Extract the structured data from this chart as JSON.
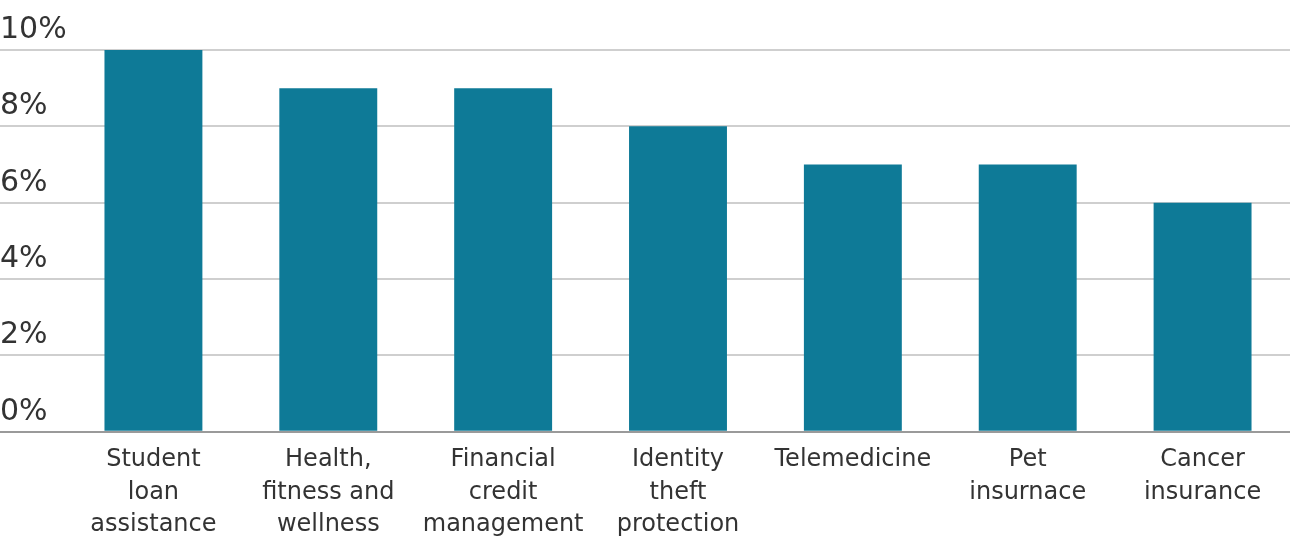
{
  "chart_data": {
    "type": "bar",
    "categories": [
      "Student loan assistance",
      "Health, fitness and wellness",
      "Financial credit management",
      "Identity theft protection",
      "Telemedicine",
      "Pet insurnace",
      "Cancer insurance"
    ],
    "values": [
      10,
      9,
      9,
      8,
      7,
      7,
      6
    ],
    "color": "#0e7a97",
    "ylim": [
      0,
      10
    ],
    "yticks": [
      {
        "value": 0,
        "label": "0%"
      },
      {
        "value": 2,
        "label": "2%"
      },
      {
        "value": 4,
        "label": "4%"
      },
      {
        "value": 6,
        "label": "6%"
      },
      {
        "value": 8,
        "label": "8%"
      },
      {
        "value": 10,
        "label": "10%"
      }
    ],
    "grid": "y",
    "legend": false
  }
}
